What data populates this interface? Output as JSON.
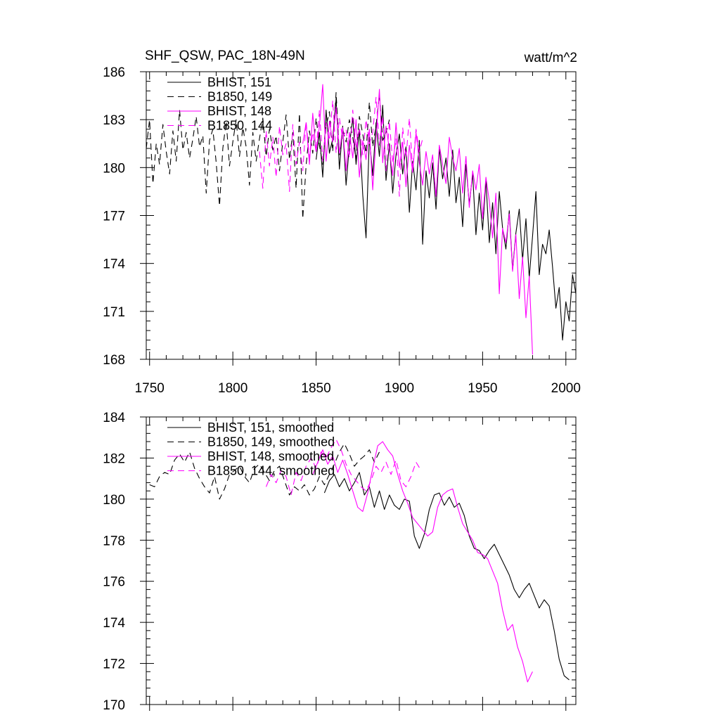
{
  "chart_data": [
    {
      "type": "line",
      "title": "SHF_QSW, PAC_18N-49N",
      "units": "watt/m^2",
      "xlim": [
        1748,
        2006
      ],
      "ylim": [
        168,
        186
      ],
      "xticks": [
        1750,
        1800,
        1850,
        1900,
        1950,
        2000
      ],
      "xtick_labels": [
        "1750",
        "1800",
        "1850",
        "1900",
        "1950",
        "2000"
      ],
      "yticks": [
        168,
        171,
        174,
        177,
        180,
        183,
        186
      ],
      "ytick_labels": [
        "168",
        "171",
        "174",
        "177",
        "180",
        "183",
        "186"
      ],
      "legend": [
        "BHIST, 151",
        "B1850, 149",
        "BHIST, 148",
        "B1850, 144"
      ],
      "series": [
        {
          "name": "BHIST, 151",
          "color": "#000000",
          "dash": "solid",
          "x": [
            1850,
            1852,
            1854,
            1856,
            1858,
            1860,
            1862,
            1864,
            1866,
            1868,
            1870,
            1872,
            1874,
            1876,
            1878,
            1880,
            1882,
            1884,
            1886,
            1888,
            1890,
            1892,
            1894,
            1896,
            1898,
            1900,
            1902,
            1904,
            1906,
            1908,
            1910,
            1912,
            1914,
            1916,
            1918,
            1920,
            1922,
            1924,
            1926,
            1928,
            1930,
            1932,
            1934,
            1936,
            1938,
            1940,
            1942,
            1944,
            1946,
            1948,
            1950,
            1952,
            1954,
            1956,
            1958,
            1960,
            1962,
            1964,
            1966,
            1968,
            1970,
            1972,
            1974,
            1976,
            1978,
            1980,
            1982,
            1984,
            1986,
            1988,
            1990,
            1992,
            1994,
            1996,
            1998,
            2000,
            2002,
            2004,
            2006
          ],
          "y": [
            180.5,
            182.2,
            179.4,
            183.6,
            180.9,
            181.8,
            184.3,
            179.9,
            182.6,
            178.9,
            181.4,
            183.1,
            180.2,
            182.4,
            178.3,
            175.6,
            181.9,
            179.5,
            182.8,
            180.7,
            183.9,
            179.2,
            181.5,
            178.4,
            180.8,
            182.1,
            179.6,
            181.3,
            177.2,
            180.4,
            178.6,
            181.7,
            175.2,
            179.8,
            178.1,
            180.3,
            177.4,
            181.2,
            179.3,
            180.6,
            178.2,
            181.1,
            177.8,
            179.4,
            176.3,
            180.2,
            177.7,
            179.6,
            175.8,
            178.4,
            176.1,
            179.2,
            175.3,
            177.8,
            174.6,
            178.5,
            176.2,
            174.9,
            177.3,
            173.6,
            175.9,
            177.4,
            174.2,
            176.8,
            173.1,
            175.7,
            178.5,
            173.3,
            175.2,
            174.6,
            176.1,
            173.8,
            171.2,
            172.5,
            169.2,
            171.6,
            170.4,
            173.3,
            172.1
          ]
        },
        {
          "name": "B1850, 149",
          "color": "#000000",
          "dash": "dashed",
          "x": [
            1748,
            1750,
            1752,
            1754,
            1756,
            1758,
            1760,
            1762,
            1764,
            1766,
            1768,
            1770,
            1772,
            1774,
            1776,
            1778,
            1780,
            1782,
            1784,
            1786,
            1788,
            1790,
            1792,
            1794,
            1796,
            1798,
            1800,
            1802,
            1804,
            1806,
            1808,
            1810,
            1812,
            1814,
            1816,
            1818,
            1820,
            1822,
            1824,
            1826,
            1828,
            1830,
            1832,
            1834,
            1836,
            1838,
            1840,
            1842,
            1844,
            1846,
            1848,
            1850,
            1852,
            1854,
            1856,
            1858,
            1860,
            1862,
            1864,
            1866,
            1868,
            1870,
            1872,
            1874,
            1876,
            1878,
            1880,
            1882,
            1884,
            1886,
            1888,
            1890,
            1892,
            1894
          ],
          "y": [
            181.2,
            183.0,
            179.0,
            181.5,
            180.2,
            182.7,
            181.0,
            179.6,
            182.3,
            180.4,
            183.6,
            181.1,
            182.2,
            180.6,
            181.8,
            183.2,
            181.3,
            182.0,
            178.4,
            181.7,
            182.4,
            180.3,
            177.6,
            181.2,
            182.9,
            180.1,
            181.6,
            183.0,
            180.7,
            182.5,
            181.3,
            178.9,
            182.2,
            180.4,
            181.8,
            183.1,
            180.7,
            182.4,
            181.1,
            182.0,
            179.8,
            181.6,
            183.3,
            180.5,
            182.2,
            178.7,
            183.4,
            176.8,
            180.1,
            182.3,
            180.9,
            183.1,
            181.4,
            180.2,
            182.6,
            183.5,
            181.0,
            184.7,
            180.8,
            182.4,
            181.6,
            183.0,
            181.9,
            180.5,
            183.2,
            182.1,
            180.9,
            184.1,
            181.3,
            182.6,
            184.6,
            181.7,
            182.2,
            183.0
          ]
        },
        {
          "name": "BHIST, 148",
          "color": "#ff00ff",
          "dash": "solid",
          "x": [
            1842,
            1844,
            1846,
            1848,
            1850,
            1852,
            1854,
            1856,
            1858,
            1860,
            1862,
            1864,
            1866,
            1868,
            1870,
            1872,
            1874,
            1876,
            1878,
            1880,
            1882,
            1884,
            1886,
            1888,
            1890,
            1892,
            1894,
            1896,
            1898,
            1900,
            1902,
            1904,
            1906,
            1908,
            1910,
            1912,
            1914,
            1916,
            1918,
            1920,
            1922,
            1924,
            1926,
            1928,
            1930,
            1932,
            1934,
            1936,
            1938,
            1940,
            1942,
            1944,
            1946,
            1948,
            1950,
            1952,
            1954,
            1956,
            1958,
            1960,
            1962,
            1964,
            1966,
            1968,
            1970,
            1972,
            1974,
            1976,
            1978,
            1980
          ],
          "y": [
            181.5,
            182.8,
            180.2,
            183.4,
            181.0,
            182.6,
            185.2,
            180.4,
            182.9,
            181.6,
            183.8,
            180.9,
            182.5,
            179.8,
            182.2,
            180.6,
            183.0,
            179.4,
            181.7,
            180.5,
            182.4,
            178.6,
            181.8,
            184.9,
            180.3,
            182.6,
            181.1,
            179.5,
            182.8,
            180.0,
            181.6,
            178.8,
            181.4,
            179.7,
            182.2,
            180.3,
            178.9,
            181.0,
            179.6,
            180.8,
            178.2,
            181.4,
            180.2,
            179.0,
            181.9,
            180.6,
            179.8,
            181.2,
            178.4,
            180.7,
            177.5,
            179.8,
            178.6,
            180.2,
            176.8,
            179.4,
            177.9,
            175.6,
            178.4,
            172.1,
            176.2,
            175.3,
            177.1,
            173.5,
            175.8,
            171.8,
            174.4,
            170.6,
            173.2,
            168.3
          ]
        },
        {
          "name": "B1850, 144",
          "color": "#ff00ff",
          "dash": "dashed",
          "x": [
            1816,
            1818,
            1820,
            1822,
            1824,
            1826,
            1828,
            1830,
            1832,
            1834,
            1836,
            1838,
            1840,
            1842,
            1844,
            1846,
            1848,
            1850,
            1852,
            1854,
            1856,
            1858,
            1860,
            1862,
            1864,
            1866,
            1868,
            1870,
            1872,
            1874,
            1876,
            1878,
            1880,
            1882,
            1884,
            1886,
            1888,
            1890,
            1892,
            1894,
            1896,
            1898,
            1900,
            1902,
            1904,
            1906,
            1908,
            1910,
            1912,
            1914
          ],
          "y": [
            181.0,
            178.7,
            182.3,
            180.1,
            181.9,
            179.4,
            182.6,
            180.8,
            181.5,
            178.5,
            182.7,
            180.2,
            181.6,
            179.8,
            182.9,
            180.6,
            182.2,
            181.0,
            183.6,
            180.4,
            182.8,
            181.7,
            184.2,
            180.9,
            183.1,
            181.8,
            182.4,
            180.6,
            183.6,
            181.2,
            182.5,
            180.8,
            183.0,
            181.5,
            182.2,
            184.4,
            181.4,
            183.2,
            179.8,
            182.9,
            180.3,
            181.8,
            178.2,
            182.5,
            180.6,
            183.1,
            179.9,
            182.4,
            181.0,
            181.8
          ]
        }
      ]
    },
    {
      "type": "line",
      "title": "",
      "xlim": [
        1748,
        2006
      ],
      "ylim": [
        170,
        184
      ],
      "yticks": [
        170,
        172,
        174,
        176,
        178,
        180,
        182,
        184
      ],
      "ytick_labels": [
        "170",
        "172",
        "174",
        "176",
        "178",
        "180",
        "182",
        "184"
      ],
      "xticks": [
        1750,
        1800,
        1850,
        1900,
        1950,
        2000
      ],
      "legend": [
        "BHIST, 151, smoothed",
        "B1850, 149, smoothed",
        "BHIST, 148, smoothed",
        "B1850, 144, smoothed"
      ],
      "series": [
        {
          "name": "BHIST, 151, smoothed",
          "color": "#000000",
          "dash": "solid",
          "x": [
            1855,
            1858,
            1861,
            1864,
            1867,
            1870,
            1873,
            1876,
            1879,
            1882,
            1885,
            1888,
            1891,
            1894,
            1897,
            1900,
            1903,
            1906,
            1909,
            1912,
            1915,
            1918,
            1921,
            1924,
            1927,
            1930,
            1933,
            1936,
            1939,
            1942,
            1945,
            1948,
            1951,
            1954,
            1957,
            1960,
            1963,
            1966,
            1969,
            1972,
            1975,
            1978,
            1981,
            1984,
            1987,
            1990,
            1993,
            1996,
            1999,
            2002
          ],
          "y": [
            180.3,
            180.9,
            181.2,
            180.6,
            181.0,
            180.4,
            180.8,
            181.3,
            180.2,
            180.6,
            179.6,
            180.4,
            179.5,
            180.2,
            179.7,
            179.5,
            180.0,
            179.9,
            178.2,
            177.6,
            178.3,
            179.5,
            180.2,
            180.3,
            179.7,
            180.1,
            179.6,
            179.8,
            179.2,
            178.2,
            177.6,
            177.5,
            177.1,
            177.5,
            177.8,
            177.3,
            176.8,
            176.3,
            175.6,
            175.2,
            175.6,
            175.9,
            175.3,
            174.7,
            175.1,
            174.8,
            173.6,
            172.2,
            171.4,
            171.2
          ]
        },
        {
          "name": "B1850, 149, smoothed",
          "color": "#000000",
          "dash": "dashed",
          "x": [
            1750,
            1753,
            1756,
            1759,
            1762,
            1765,
            1768,
            1771,
            1774,
            1777,
            1780,
            1783,
            1786,
            1789,
            1792,
            1795,
            1798,
            1801,
            1804,
            1807,
            1810,
            1813,
            1816,
            1819,
            1822,
            1825,
            1828,
            1831,
            1834,
            1837,
            1840,
            1843,
            1846,
            1849,
            1852,
            1855,
            1858,
            1861,
            1864,
            1867,
            1870,
            1873,
            1876,
            1879,
            1882,
            1885,
            1888
          ],
          "y": [
            180.7,
            180.6,
            181.1,
            181.3,
            181.2,
            181.9,
            182.2,
            181.8,
            182.3,
            181.5,
            181.0,
            180.6,
            180.3,
            181.1,
            180.0,
            180.5,
            181.2,
            181.4,
            181.6,
            181.1,
            180.8,
            181.5,
            181.7,
            181.3,
            180.9,
            181.4,
            181.6,
            180.9,
            180.2,
            180.6,
            180.4,
            180.7,
            180.2,
            180.5,
            181.1,
            180.7,
            181.2,
            181.7,
            182.3,
            182.7,
            182.2,
            181.6,
            181.9,
            182.1,
            182.4,
            181.8,
            182.3
          ]
        },
        {
          "name": "BHIST, 148, smoothed",
          "color": "#ff00ff",
          "dash": "solid",
          "x": [
            1848,
            1851,
            1854,
            1857,
            1860,
            1863,
            1866,
            1869,
            1872,
            1875,
            1878,
            1881,
            1884,
            1887,
            1890,
            1893,
            1896,
            1899,
            1902,
            1905,
            1908,
            1911,
            1914,
            1917,
            1920,
            1923,
            1926,
            1929,
            1932,
            1935,
            1938,
            1941,
            1944,
            1947,
            1950,
            1953,
            1956,
            1959,
            1962,
            1965,
            1968,
            1971,
            1974,
            1977,
            1980
          ],
          "y": [
            181.2,
            181.8,
            182.4,
            181.7,
            182.1,
            181.3,
            181.9,
            181.2,
            180.4,
            179.6,
            179.4,
            180.3,
            181.5,
            182.6,
            182.8,
            182.4,
            182.1,
            181.2,
            180.4,
            179.8,
            179.1,
            178.8,
            178.5,
            178.2,
            178.4,
            179.6,
            180.2,
            180.4,
            180.5,
            179.6,
            178.8,
            178.4,
            178.0,
            177.4,
            177.3,
            177.1,
            176.5,
            175.9,
            174.6,
            173.6,
            173.9,
            172.8,
            172.1,
            171.1,
            171.6
          ]
        },
        {
          "name": "B1850, 144, smoothed",
          "color": "#ff00ff",
          "dash": "dashed",
          "x": [
            1820,
            1823,
            1826,
            1829,
            1832,
            1835,
            1838,
            1841,
            1844,
            1847,
            1850,
            1853,
            1856,
            1859,
            1862,
            1865,
            1868,
            1871,
            1874,
            1877,
            1880,
            1883,
            1886,
            1889,
            1892,
            1895,
            1898,
            1901,
            1904,
            1907,
            1910,
            1913
          ],
          "y": [
            180.6,
            181.2,
            180.8,
            181.4,
            181.1,
            180.2,
            181.3,
            180.9,
            181.6,
            182.0,
            181.5,
            182.3,
            182.0,
            182.5,
            182.9,
            182.4,
            181.7,
            181.2,
            180.9,
            180.6,
            180.4,
            180.9,
            181.6,
            181.3,
            181.8,
            181.2,
            181.9,
            180.9,
            180.6,
            181.1,
            181.8,
            181.4
          ]
        }
      ]
    }
  ]
}
